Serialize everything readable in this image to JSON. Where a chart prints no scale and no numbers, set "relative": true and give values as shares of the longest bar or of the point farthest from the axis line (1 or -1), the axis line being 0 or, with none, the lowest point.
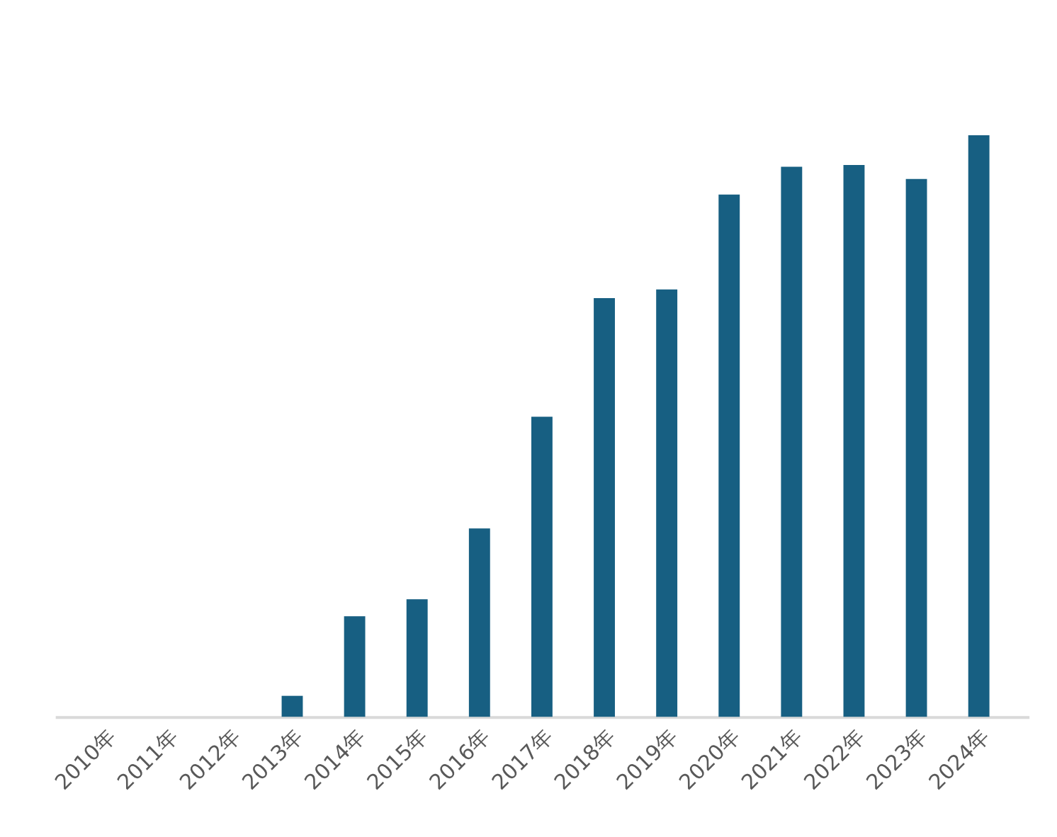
{
  "chart_data": {
    "type": "bar",
    "relative": true,
    "color": "#175f82",
    "categories": [
      "2010年",
      "2011年",
      "2012年",
      "2013年",
      "2014年",
      "2015年",
      "2016年",
      "2017年",
      "2018年",
      "2019年",
      "2020年",
      "2021年",
      "2022年",
      "2023年",
      "2024年"
    ],
    "values": [
      0,
      0,
      0,
      0.036,
      0.173,
      0.202,
      0.324,
      0.516,
      0.72,
      0.735,
      0.898,
      0.946,
      0.949,
      0.925,
      1
    ],
    "grid": false
  }
}
